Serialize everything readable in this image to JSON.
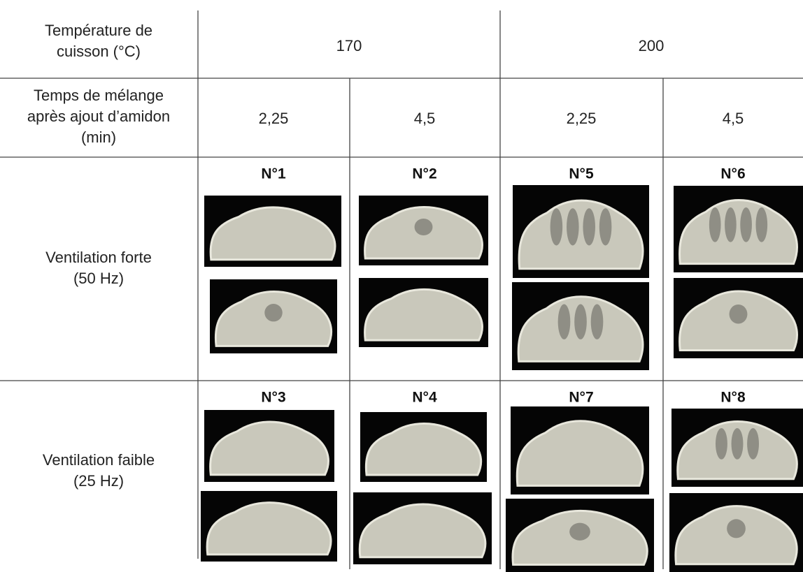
{
  "header": {
    "temperature_label": [
      "Température de",
      "cuisson (°C)"
    ],
    "temperatures": [
      "170",
      "200"
    ]
  },
  "mixing": {
    "label": [
      "Temps de mélange",
      "après ajout d’amidon",
      "(min)"
    ],
    "times": [
      "2,25",
      "4,5",
      "2,25",
      "4,5"
    ]
  },
  "rows": [
    {
      "label": [
        "Ventilation forte",
        "(50 Hz)"
      ],
      "samples": [
        "N°1",
        "N°2",
        "N°5",
        "N°6"
      ]
    },
    {
      "label": [
        "Ventilation faible",
        "(25 Hz)"
      ],
      "samples": [
        "N°3",
        "N°4",
        "N°7",
        "N°8"
      ]
    }
  ]
}
